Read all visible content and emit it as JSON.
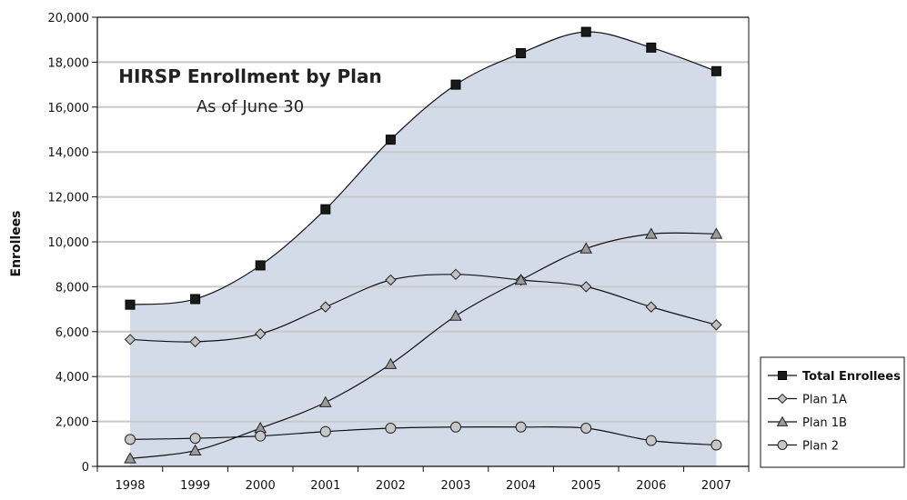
{
  "chart_data": {
    "type": "line",
    "title": "HIRSP Enrollment by Plan",
    "subtitle": "As of June 30",
    "xlabel": "",
    "ylabel": "Enrollees",
    "categories": [
      "1998",
      "1999",
      "2000",
      "2001",
      "2002",
      "2003",
      "2004",
      "2005",
      "2006",
      "2007"
    ],
    "ylim": [
      0,
      20000
    ],
    "yticks": [
      0,
      2000,
      4000,
      6000,
      8000,
      10000,
      12000,
      14000,
      16000,
      18000,
      20000
    ],
    "ytick_labels": [
      "0",
      "2,000",
      "4,000",
      "6,000",
      "8,000",
      "10,000",
      "12,000",
      "14,000",
      "16,000",
      "18,000",
      "20,000"
    ],
    "grid": true,
    "legend_position": "bottom-right",
    "series": [
      {
        "name": "Total Enrollees",
        "marker": "square",
        "area": true,
        "values": [
          7200,
          7450,
          8950,
          11450,
          14550,
          17000,
          18400,
          19350,
          18650,
          17600
        ]
      },
      {
        "name": "Plan 1A",
        "marker": "diamond",
        "values": [
          5650,
          5550,
          5900,
          7100,
          8300,
          8550,
          8300,
          8000,
          7100,
          6300
        ]
      },
      {
        "name": "Plan 1B",
        "marker": "triangle",
        "values": [
          350,
          700,
          1700,
          2850,
          4550,
          6700,
          8300,
          9700,
          10350,
          10350
        ]
      },
      {
        "name": "Plan 2",
        "marker": "circle",
        "values": [
          1200,
          1250,
          1350,
          1550,
          1700,
          1750,
          1750,
          1700,
          1150,
          950
        ]
      }
    ],
    "colors": {
      "area_fill": "#d3dbe9",
      "line": "#111111",
      "grid": "#c8c8c8",
      "marker_square": "#1a1a1a",
      "marker_diamond": "#c0c0c0",
      "marker_triangle": "#9a9a9a",
      "marker_circle": "#c7c7c7"
    }
  }
}
